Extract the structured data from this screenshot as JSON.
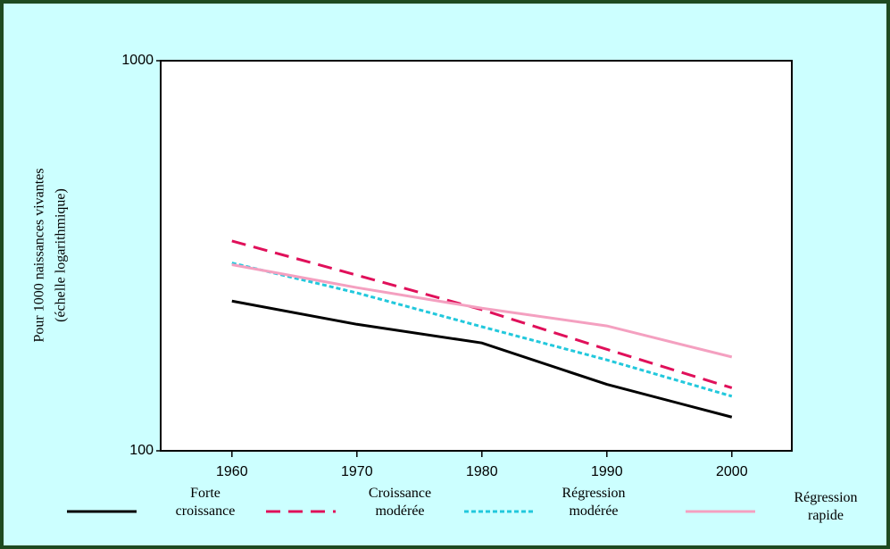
{
  "chart_data": {
    "type": "line",
    "y_label": [
      "Pour 1000 naissances vivantes",
      "(échelle logarithmique)"
    ],
    "x": [
      1960,
      1970,
      1980,
      1990,
      2000
    ],
    "xlim": [
      1954.3,
      2004.8
    ],
    "xticks": [
      1960,
      1970,
      1980,
      1990,
      2000
    ],
    "ylim": [
      100,
      1000
    ],
    "yticks": [
      100,
      1000
    ],
    "log_y": true,
    "series": [
      {
        "name": "Forte croissance",
        "color": "#000000",
        "dash": "solid",
        "values": [
          242,
          211,
          189,
          148,
          122
        ]
      },
      {
        "name": "Croissance modérée",
        "color": "#e0105a",
        "dash": "dashed",
        "values": [
          345,
          282,
          230,
          182,
          145
        ]
      },
      {
        "name": "Régression modérée",
        "color": "#22c8dc",
        "dash": "dotted",
        "values": [
          303,
          254,
          208,
          171,
          138
        ]
      },
      {
        "name": "Régression rapide",
        "color": "#f4a0c0",
        "dash": "solid",
        "values": [
          300,
          262,
          232,
          209,
          174
        ]
      }
    ]
  }
}
